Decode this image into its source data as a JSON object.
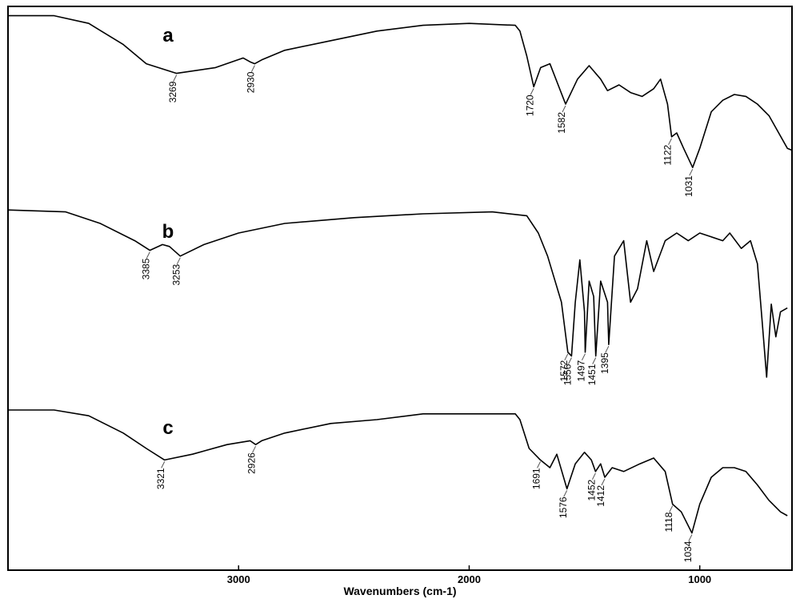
{
  "chart_data": [
    {
      "type": "line",
      "label": "a",
      "color": "#000000",
      "xlim": [
        4000,
        600
      ],
      "ylim": [
        0,
        100
      ],
      "x": [
        4000,
        3800,
        3650,
        3500,
        3400,
        3269,
        3100,
        2980,
        2950,
        2930,
        2900,
        2800,
        2600,
        2400,
        2200,
        2000,
        1800,
        1780,
        1750,
        1720,
        1690,
        1650,
        1582,
        1530,
        1480,
        1430,
        1400,
        1350,
        1300,
        1250,
        1200,
        1170,
        1140,
        1122,
        1100,
        1070,
        1031,
        1000,
        950,
        900,
        850,
        800,
        750,
        700,
        620,
        600
      ],
      "values": [
        96,
        96,
        92,
        81,
        71,
        66,
        69,
        74,
        72,
        71,
        73,
        78,
        83,
        88,
        91,
        92,
        91,
        88,
        75,
        59,
        69,
        71,
        50,
        63,
        70,
        63,
        57,
        60,
        56,
        54,
        58,
        63,
        50,
        33,
        35,
        27,
        17,
        27,
        46,
        52,
        55,
        54,
        50,
        44,
        27,
        26
      ],
      "peaks": [
        3269,
        2930,
        1720,
        1582,
        1122,
        1031
      ]
    },
    {
      "type": "line",
      "label": "b",
      "color": "#000000",
      "xlim": [
        4000,
        600
      ],
      "ylim": [
        0,
        100
      ],
      "x": [
        4000,
        3750,
        3600,
        3450,
        3385,
        3330,
        3300,
        3253,
        3150,
        3000,
        2800,
        2500,
        2200,
        1900,
        1750,
        1700,
        1660,
        1600,
        1572,
        1556,
        1540,
        1520,
        1500,
        1497,
        1480,
        1460,
        1451,
        1430,
        1400,
        1395,
        1370,
        1330,
        1300,
        1270,
        1230,
        1200,
        1150,
        1100,
        1050,
        1000,
        950,
        900,
        870,
        820,
        780,
        750,
        730,
        710,
        690,
        670,
        650,
        620
      ],
      "values": [
        97,
        96,
        90,
        81,
        76,
        79,
        78,
        73,
        79,
        85,
        90,
        93,
        95,
        96,
        94,
        85,
        73,
        49,
        23,
        21,
        49,
        71,
        44,
        23,
        60,
        52,
        21,
        60,
        49,
        27,
        73,
        81,
        49,
        56,
        81,
        65,
        81,
        85,
        81,
        85,
        83,
        81,
        85,
        77,
        81,
        69,
        40,
        10,
        48,
        31,
        44,
        46
      ],
      "peaks": [
        3385,
        3253,
        1572,
        1556,
        1497,
        1451,
        1395
      ]
    },
    {
      "type": "line",
      "label": "c",
      "color": "#000000",
      "xlim": [
        4000,
        600
      ],
      "ylim": [
        0,
        100
      ],
      "xticks": [
        3000,
        2000,
        1000
      ],
      "x_label": "Wavenumbers (cm-1)",
      "x": [
        4000,
        3800,
        3650,
        3500,
        3400,
        3321,
        3200,
        3050,
        2950,
        2926,
        2900,
        2800,
        2600,
        2400,
        2200,
        2000,
        1800,
        1780,
        1740,
        1691,
        1650,
        1620,
        1576,
        1540,
        1500,
        1470,
        1452,
        1430,
        1412,
        1380,
        1330,
        1260,
        1200,
        1150,
        1118,
        1080,
        1034,
        1000,
        950,
        900,
        850,
        800,
        750,
        700,
        650,
        620
      ],
      "values": [
        95,
        95,
        92,
        83,
        75,
        69,
        72,
        77,
        79,
        77,
        79,
        83,
        88,
        90,
        93,
        93,
        93,
        90,
        75,
        69,
        65,
        72,
        54,
        67,
        73,
        69,
        63,
        67,
        60,
        65,
        63,
        67,
        70,
        63,
        46,
        42,
        31,
        46,
        60,
        65,
        65,
        63,
        56,
        48,
        42,
        40
      ],
      "peaks": [
        3321,
        2926,
        1691,
        1576,
        1452,
        1412,
        1118,
        1034
      ]
    }
  ]
}
